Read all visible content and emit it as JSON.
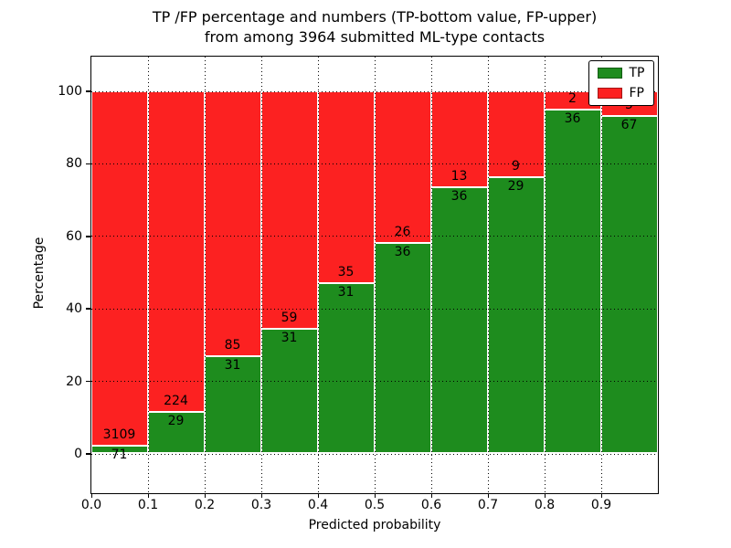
{
  "chart_data": {
    "type": "bar",
    "stacked": true,
    "orientation": "vertical",
    "title_line1": "TP /FP percentage and numbers (TP-bottom value, FP-upper)",
    "title_line2": "from among 3964 submitted ML-type contacts",
    "xlabel": "Predicted probability",
    "ylabel": "Percentage",
    "total_contacts": 3964,
    "bar_unit": "percent of bin total (TP+FP stack to 100%)",
    "bins": [
      {
        "range": "0.0-0.1",
        "tp": 71,
        "fp": 3109,
        "tp_percent": 2.2
      },
      {
        "range": "0.1-0.2",
        "tp": 29,
        "fp": 224,
        "tp_percent": 11.5
      },
      {
        "range": "0.2-0.3",
        "tp": 31,
        "fp": 85,
        "tp_percent": 26.7
      },
      {
        "range": "0.3-0.4",
        "tp": 31,
        "fp": 59,
        "tp_percent": 34.4
      },
      {
        "range": "0.4-0.5",
        "tp": 31,
        "fp": 35,
        "tp_percent": 47.0
      },
      {
        "range": "0.5-0.6",
        "tp": 36,
        "fp": 26,
        "tp_percent": 58.1
      },
      {
        "range": "0.6-0.7",
        "tp": 36,
        "fp": 13,
        "tp_percent": 73.5
      },
      {
        "range": "0.7-0.8",
        "tp": 29,
        "fp": 9,
        "tp_percent": 76.3
      },
      {
        "range": "0.8-0.9",
        "tp": 36,
        "fp": 2,
        "tp_percent": 94.7
      },
      {
        "range": "0.9-1.0",
        "tp": 67,
        "fp": 5,
        "tp_percent": 93.1
      }
    ],
    "series": [
      {
        "name": "TP",
        "color": "#1e8c1e",
        "values": [
          71,
          29,
          31,
          31,
          31,
          36,
          36,
          29,
          36,
          67
        ]
      },
      {
        "name": "FP",
        "color": "#fc2121",
        "values": [
          3109,
          224,
          85,
          59,
          35,
          26,
          13,
          9,
          2,
          5
        ]
      }
    ],
    "x_tick_labels": [
      "0.0",
      "0.1",
      "0.2",
      "0.3",
      "0.4",
      "0.5",
      "0.6",
      "0.7",
      "0.8",
      "0.9"
    ],
    "y_ticks": [
      0,
      20,
      40,
      60,
      80,
      100
    ],
    "xlim": [
      0.0,
      1.0
    ],
    "ylim": [
      -10.8,
      109.6
    ],
    "grid": {
      "on": true,
      "style": "dotted",
      "color": "#000000"
    },
    "legend": {
      "position": "upper right",
      "entries": [
        {
          "label": "TP",
          "color": "#1e8c1e"
        },
        {
          "label": "FP",
          "color": "#fc2121"
        }
      ]
    },
    "background": "#ffffff"
  }
}
